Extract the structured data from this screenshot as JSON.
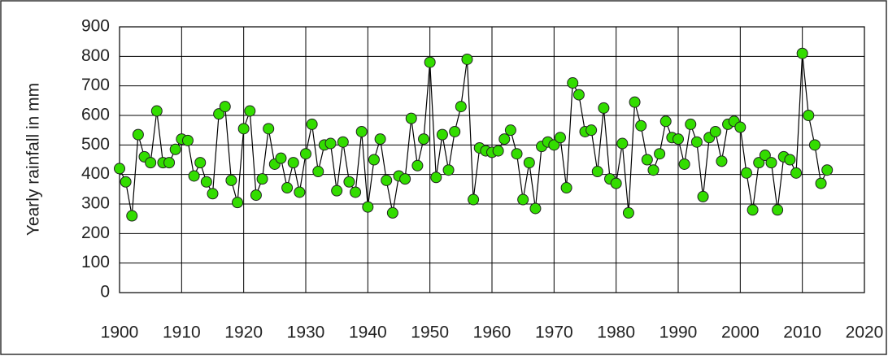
{
  "chart_data": {
    "type": "line",
    "y_label": "Yearly rainfall in mm",
    "x": [
      1900,
      1901,
      1902,
      1903,
      1904,
      1905,
      1906,
      1907,
      1908,
      1909,
      1910,
      1911,
      1912,
      1913,
      1914,
      1915,
      1916,
      1917,
      1918,
      1919,
      1920,
      1921,
      1922,
      1923,
      1924,
      1925,
      1926,
      1927,
      1928,
      1929,
      1930,
      1931,
      1932,
      1933,
      1934,
      1935,
      1936,
      1937,
      1938,
      1939,
      1940,
      1941,
      1942,
      1943,
      1944,
      1945,
      1946,
      1947,
      1948,
      1949,
      1950,
      1951,
      1952,
      1953,
      1954,
      1955,
      1956,
      1957,
      1958,
      1959,
      1960,
      1961,
      1962,
      1963,
      1964,
      1965,
      1966,
      1967,
      1968,
      1969,
      1970,
      1971,
      1972,
      1973,
      1974,
      1975,
      1976,
      1977,
      1978,
      1979,
      1980,
      1981,
      1982,
      1983,
      1984,
      1985,
      1986,
      1987,
      1988,
      1989,
      1990,
      1991,
      1992,
      1993,
      1994,
      1995,
      1996,
      1997,
      1998,
      1999,
      2000,
      2001,
      2002,
      2003,
      2004,
      2005,
      2006,
      2007,
      2008,
      2009,
      2010,
      2011,
      2012,
      2013,
      2014
    ],
    "values": [
      420,
      375,
      260,
      535,
      460,
      440,
      615,
      440,
      440,
      485,
      520,
      515,
      395,
      440,
      375,
      335,
      605,
      630,
      380,
      305,
      555,
      615,
      330,
      385,
      555,
      435,
      455,
      355,
      440,
      340,
      470,
      570,
      410,
      500,
      505,
      345,
      510,
      375,
      340,
      545,
      290,
      450,
      520,
      380,
      270,
      395,
      385,
      590,
      430,
      520,
      780,
      390,
      535,
      415,
      545,
      630,
      790,
      315,
      490,
      480,
      475,
      480,
      520,
      550,
      470,
      315,
      440,
      285,
      495,
      510,
      500,
      525,
      355,
      710,
      670,
      545,
      550,
      410,
      625,
      385,
      370,
      505,
      270,
      645,
      565,
      450,
      415,
      470,
      580,
      525,
      520,
      435,
      570,
      510,
      325,
      525,
      545,
      445,
      570,
      580,
      560,
      405,
      280,
      440,
      465,
      440,
      280,
      460,
      450,
      405,
      810,
      600,
      500,
      370,
      415
    ],
    "color": "#33dd00",
    "line_color": "#000000",
    "xlim": [
      1900,
      2020
    ],
    "xticks": [
      1900,
      1910,
      1920,
      1930,
      1940,
      1950,
      1960,
      1970,
      1980,
      1990,
      2000,
      2010,
      2020
    ],
    "ylim": [
      0,
      900
    ],
    "yticks": [
      0,
      100,
      200,
      300,
      400,
      500,
      600,
      700,
      800,
      900
    ],
    "grid": true
  }
}
